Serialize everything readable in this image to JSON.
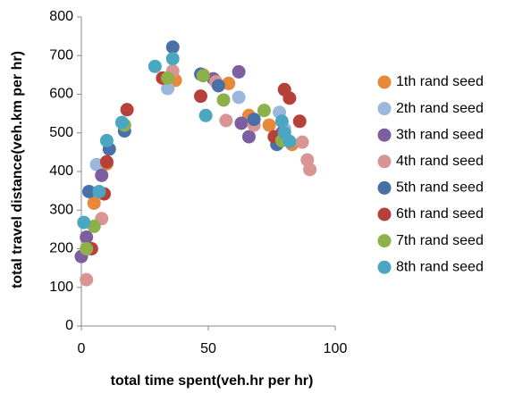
{
  "chart_data": {
    "type": "scatter",
    "x_label": "total time spent(veh.hr per hr)",
    "y_label": "total travel distance(veh.km per hr)",
    "xlim": [
      0,
      100
    ],
    "xticks": [
      0,
      50,
      100
    ],
    "ylim": [
      0,
      800
    ],
    "yticks": [
      0,
      100,
      200,
      300,
      400,
      500,
      600,
      700,
      800
    ],
    "grid": false,
    "legend": "right",
    "series": [
      {
        "name": "1th rand seed",
        "color": "#e8883a",
        "x": [
          5,
          10,
          37,
          48,
          58,
          66,
          74,
          83
        ],
        "values": [
          318,
          420,
          636,
          650,
          628,
          545,
          520,
          470
        ]
      },
      {
        "name": "2th rand seed",
        "color": "#9bb7d9",
        "x": [
          6,
          34,
          62,
          78,
          80,
          3
        ],
        "values": [
          418,
          615,
          592,
          553,
          510,
          200
        ]
      },
      {
        "name": "3th rand seed",
        "color": "#7d5fa0",
        "x": [
          0,
          2,
          8,
          52,
          62,
          66,
          63,
          79
        ],
        "values": [
          180,
          230,
          390,
          640,
          658,
          490,
          525,
          500
        ]
      },
      {
        "name": "4th rand seed",
        "color": "#d99594",
        "x": [
          2,
          8,
          36,
          53,
          57,
          68,
          87,
          89,
          90
        ],
        "values": [
          120,
          278,
          660,
          632,
          532,
          520,
          476,
          430,
          405
        ]
      },
      {
        "name": "5th rand seed",
        "color": "#4a70a8",
        "x": [
          3,
          11,
          17,
          36,
          47,
          54,
          68,
          77
        ],
        "values": [
          348,
          458,
          505,
          722,
          652,
          622,
          535,
          470
        ]
      },
      {
        "name": "6th rand seed",
        "color": "#b7403a",
        "x": [
          4,
          9,
          10,
          18,
          32,
          47,
          76,
          80,
          82,
          86
        ],
        "values": [
          200,
          342,
          425,
          560,
          642,
          595,
          490,
          612,
          590,
          530
        ]
      },
      {
        "name": "7th rand seed",
        "color": "#8db04a",
        "x": [
          2,
          5,
          17,
          34,
          48,
          56,
          72,
          79
        ],
        "values": [
          200,
          258,
          520,
          642,
          648,
          585,
          558,
          480
        ]
      },
      {
        "name": "8th rand seed",
        "color": "#4ba7c1",
        "x": [
          1,
          7,
          10,
          16,
          29,
          36,
          49,
          79,
          80,
          82
        ],
        "values": [
          268,
          348,
          480,
          527,
          672,
          692,
          545,
          530,
          500,
          478
        ]
      }
    ]
  }
}
